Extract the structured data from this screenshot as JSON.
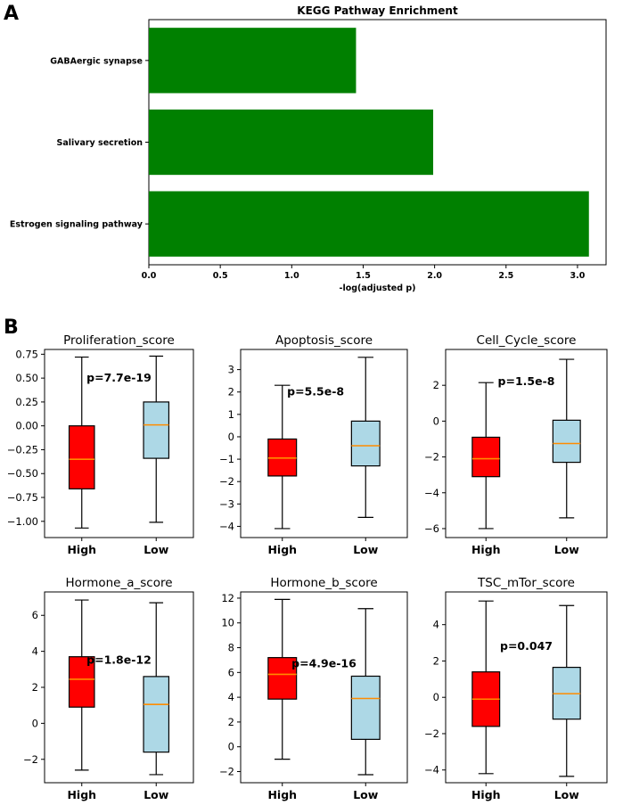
{
  "panel_labels": {
    "a": "A",
    "b": "B"
  },
  "chart_data": [
    {
      "type": "bar",
      "orientation": "horizontal",
      "title": "KEGG Pathway Enrichment",
      "xlabel": "-log(adjusted p)",
      "ylabel": "",
      "xlim": [
        0,
        3.2
      ],
      "xticks": [
        "0.0",
        "0.5",
        "1.0",
        "1.5",
        "2.0",
        "2.5",
        "3.0"
      ],
      "color": "#008000",
      "categories": [
        "Estrogen signaling pathway",
        "Salivary secretion",
        "GABAergic synapse"
      ],
      "values": [
        3.08,
        1.99,
        1.45
      ]
    },
    {
      "type": "box",
      "title": "Proliferation_score",
      "categories": [
        "High",
        "Low"
      ],
      "ylim": [
        -1.17,
        0.8
      ],
      "yticks": [
        "0.75",
        "0.50",
        "0.25",
        "0.00",
        "−0.25",
        "−0.50",
        "−0.75",
        "−1.00"
      ],
      "ytick_values": [
        0.75,
        0.5,
        0.25,
        0.0,
        -0.25,
        -0.5,
        -0.75,
        -1.0
      ],
      "annotation": "p=7.7e-19",
      "annotation_pos": [
        1.5,
        0.5
      ],
      "boxes": [
        {
          "min": -1.07,
          "q1": -0.66,
          "median": -0.35,
          "q3": 0.0,
          "max": 0.72,
          "color": "#ff0000"
        },
        {
          "min": -1.01,
          "q1": -0.34,
          "median": 0.01,
          "q3": 0.25,
          "max": 0.73,
          "color": "#add8e6"
        }
      ]
    },
    {
      "type": "box",
      "title": "Apoptosis_score",
      "categories": [
        "High",
        "Low"
      ],
      "ylim": [
        -4.5,
        3.9
      ],
      "yticks": [
        "3",
        "2",
        "1",
        "0",
        "−1",
        "−2",
        "−3",
        "−4"
      ],
      "ytick_values": [
        3,
        2,
        1,
        0,
        -1,
        -2,
        -3,
        -4
      ],
      "annotation": "p=5.5e-8",
      "annotation_pos": [
        1.4,
        2.0
      ],
      "boxes": [
        {
          "min": -4.1,
          "q1": -1.75,
          "median": -0.95,
          "q3": -0.1,
          "max": 2.3,
          "color": "#ff0000"
        },
        {
          "min": -3.6,
          "q1": -1.3,
          "median": -0.4,
          "q3": 0.7,
          "max": 3.55,
          "color": "#add8e6"
        }
      ]
    },
    {
      "type": "box",
      "title": "Cell_Cycle_score",
      "categories": [
        "High",
        "Low"
      ],
      "ylim": [
        -6.5,
        4.0
      ],
      "yticks": [
        "2",
        "0",
        "−2",
        "−4",
        "−6"
      ],
      "ytick_values": [
        2,
        0,
        -2,
        -4,
        -6
      ],
      "annotation": "p=1.5e-8",
      "annotation_pos": [
        1.5,
        2.2
      ],
      "boxes": [
        {
          "min": -6.0,
          "q1": -3.1,
          "median": -2.1,
          "q3": -0.9,
          "max": 2.15,
          "color": "#ff0000"
        },
        {
          "min": -5.4,
          "q1": -2.3,
          "median": -1.25,
          "q3": 0.05,
          "max": 3.45,
          "color": "#add8e6"
        }
      ]
    },
    {
      "type": "box",
      "title": "Hormone_a_score",
      "categories": [
        "High",
        "Low"
      ],
      "ylim": [
        -3.3,
        7.3
      ],
      "yticks": [
        "6",
        "4",
        "2",
        "0",
        "−2"
      ],
      "ytick_values": [
        6,
        4,
        2,
        0,
        -2
      ],
      "annotation": "p=1.8e-12",
      "annotation_pos": [
        1.5,
        3.5
      ],
      "boxes": [
        {
          "min": -2.6,
          "q1": 0.9,
          "median": 2.45,
          "q3": 3.7,
          "max": 6.85,
          "color": "#ff0000"
        },
        {
          "min": -2.85,
          "q1": -1.6,
          "median": 1.05,
          "q3": 2.6,
          "max": 6.7,
          "color": "#add8e6"
        }
      ]
    },
    {
      "type": "box",
      "title": "Hormone_b_score",
      "categories": [
        "High",
        "Low"
      ],
      "ylim": [
        -2.9,
        12.5
      ],
      "yticks": [
        "12",
        "10",
        "8",
        "6",
        "4",
        "2",
        "0",
        "−2"
      ],
      "ytick_values": [
        12,
        10,
        8,
        6,
        4,
        2,
        0,
        -2
      ],
      "annotation": "p=4.9e-16",
      "annotation_pos": [
        1.5,
        6.7
      ],
      "boxes": [
        {
          "min": -1.0,
          "q1": 3.85,
          "median": 5.85,
          "q3": 7.2,
          "max": 11.9,
          "color": "#ff0000"
        },
        {
          "min": -2.25,
          "q1": 0.6,
          "median": 3.9,
          "q3": 5.7,
          "max": 11.15,
          "color": "#add8e6"
        }
      ]
    },
    {
      "type": "box",
      "title": "TSC_mTor_score",
      "categories": [
        "High",
        "Low"
      ],
      "ylim": [
        -4.7,
        5.8
      ],
      "yticks": [
        "4",
        "2",
        "0",
        "−2",
        "−4"
      ],
      "ytick_values": [
        4,
        2,
        0,
        -2,
        -4
      ],
      "annotation": "p=0.047",
      "annotation_pos": [
        1.5,
        2.8
      ],
      "boxes": [
        {
          "min": -4.2,
          "q1": -1.6,
          "median": -0.1,
          "q3": 1.4,
          "max": 5.3,
          "color": "#ff0000"
        },
        {
          "min": -4.35,
          "q1": -1.2,
          "median": 0.2,
          "q3": 1.65,
          "max": 5.05,
          "color": "#add8e6"
        }
      ]
    }
  ]
}
